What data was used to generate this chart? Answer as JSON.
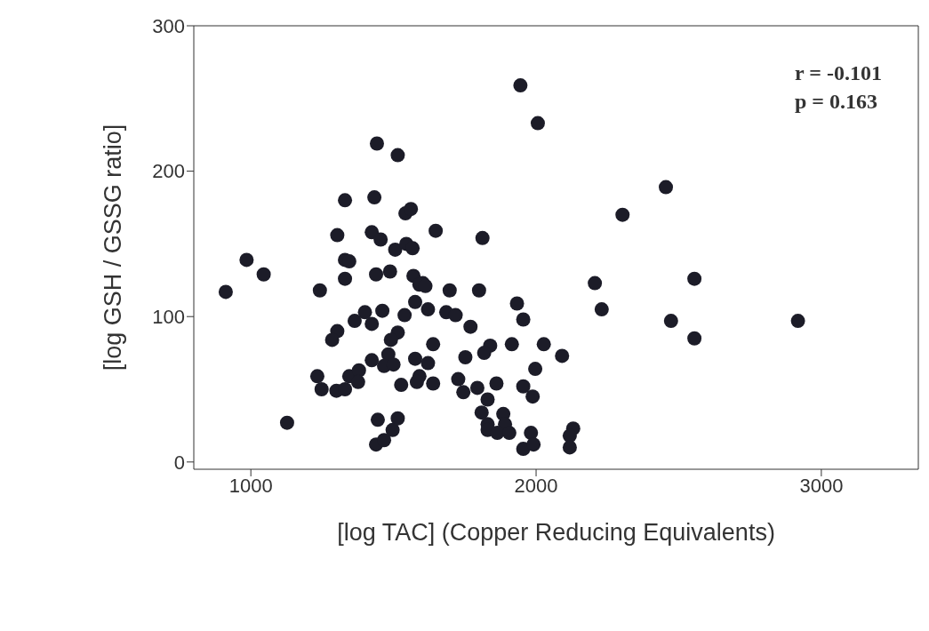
{
  "chart_data": {
    "type": "scatter",
    "xlabel": "[log TAC] (Copper Reducing Equivalents)",
    "ylabel": "[log GSH / GSSG ratio]",
    "xlim": [
      800,
      3340
    ],
    "ylim": [
      -5,
      300
    ],
    "xticks": [
      1000,
      2000,
      3000
    ],
    "yticks": [
      0,
      100,
      200,
      300
    ],
    "marker": "circle",
    "annotations": [
      "r = -0.101",
      "p = 0.163"
    ],
    "series": [
      {
        "color": "#1c1c28",
        "x": [
          1945,
          2006,
          1442,
          1515,
          1330,
          1433,
          1542,
          1561,
          1648,
          1812,
          1303,
          1424,
          1455,
          1506,
          1545,
          1567,
          985,
          1045,
          1330,
          1345,
          1330,
          1439,
          1488,
          1570,
          1603,
          912,
          1242,
          1591,
          1612,
          1697,
          1800,
          1933,
          1955,
          1576,
          1621,
          1461,
          1400,
          1539,
          1685,
          1718,
          1364,
          1424,
          1770,
          1303,
          1285,
          1515,
          1491,
          1639,
          1915,
          2027,
          1839,
          1818,
          1752,
          1424,
          1482,
          1467,
          1500,
          1576,
          1621,
          1233,
          1248,
          1300,
          1330,
          1345,
          1379,
          1376,
          1527,
          1591,
          1582,
          1639,
          1727,
          1745,
          1794,
          1861,
          1997,
          1955,
          1988,
          1830,
          1809,
          1885,
          1891,
          1830,
          1830,
          1864,
          1906,
          1982,
          1955,
          1991,
          1127,
          1445,
          1515,
          1497,
          1439,
          1467,
          2455,
          2303,
          2206,
          2230,
          2555,
          2473,
          2555,
          2918,
          2091,
          2130,
          2118,
          2118
        ],
        "values": [
          259,
          233,
          219,
          211,
          180,
          182,
          171,
          174,
          159,
          154,
          156,
          158,
          153,
          146,
          150,
          147,
          139,
          129,
          139,
          138,
          126,
          129,
          131,
          128,
          123,
          117,
          118,
          122,
          121,
          118,
          118,
          109,
          98,
          110,
          105,
          104,
          103,
          101,
          103,
          101,
          97,
          95,
          93,
          90,
          84,
          89,
          84,
          81,
          81,
          81,
          80,
          75,
          72,
          70,
          74,
          66,
          67,
          71,
          68,
          59,
          50,
          49,
          50,
          59,
          63,
          55,
          53,
          59,
          55,
          54,
          57,
          48,
          51,
          54,
          64,
          52,
          45,
          43,
          34,
          33,
          26,
          26,
          22,
          20,
          20,
          20,
          9,
          12,
          27,
          29,
          30,
          22,
          12,
          15,
          189,
          170,
          123,
          105,
          126,
          97,
          85,
          97,
          73,
          23,
          18,
          10
        ]
      }
    ]
  }
}
